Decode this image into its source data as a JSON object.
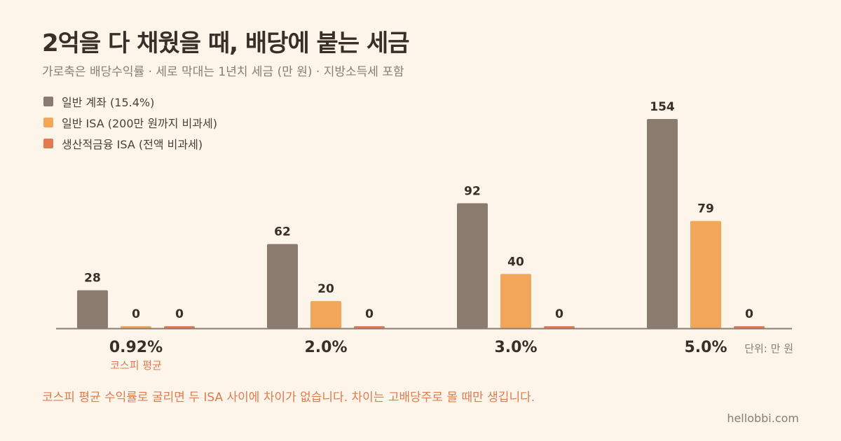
{
  "title": "2억을 다 채웠을 때, 배당에 붙는 세금",
  "subtitle": "가로축은 배당수익률 · 세로 막대는 1년치 세금 (만 원) · 지방소득세 포함",
  "note": "코스피 평균 수익률로 굴리면 두 ISA 사이에 차이가 없습니다. 차이는 고배당주로 몰 때만 생깁니다.",
  "credit": "hellobbi.com",
  "chart_data": {
    "type": "bar",
    "categories": [
      "0.92%",
      "2.0%",
      "3.0%",
      "5.0%"
    ],
    "category_sublabels": [
      "코스피 평균",
      "",
      "",
      ""
    ],
    "unit_label": "단위: 만 원",
    "series": [
      {
        "name": "일반 계좌 (15.4%)",
        "color": "#8b7b6e",
        "values": [
          28,
          62,
          92,
          154
        ]
      },
      {
        "name": "일반 ISA (200만 원까지 비과세)",
        "color": "#f2a65a",
        "values": [
          0,
          20,
          40,
          79
        ]
      },
      {
        "name": "생산적금융 ISA (전액 비과세)",
        "color": "#e07a4f",
        "values": [
          0,
          0,
          0,
          0
        ]
      }
    ],
    "ylim": [
      0,
      154
    ],
    "grid": false,
    "legend": "top-left"
  }
}
